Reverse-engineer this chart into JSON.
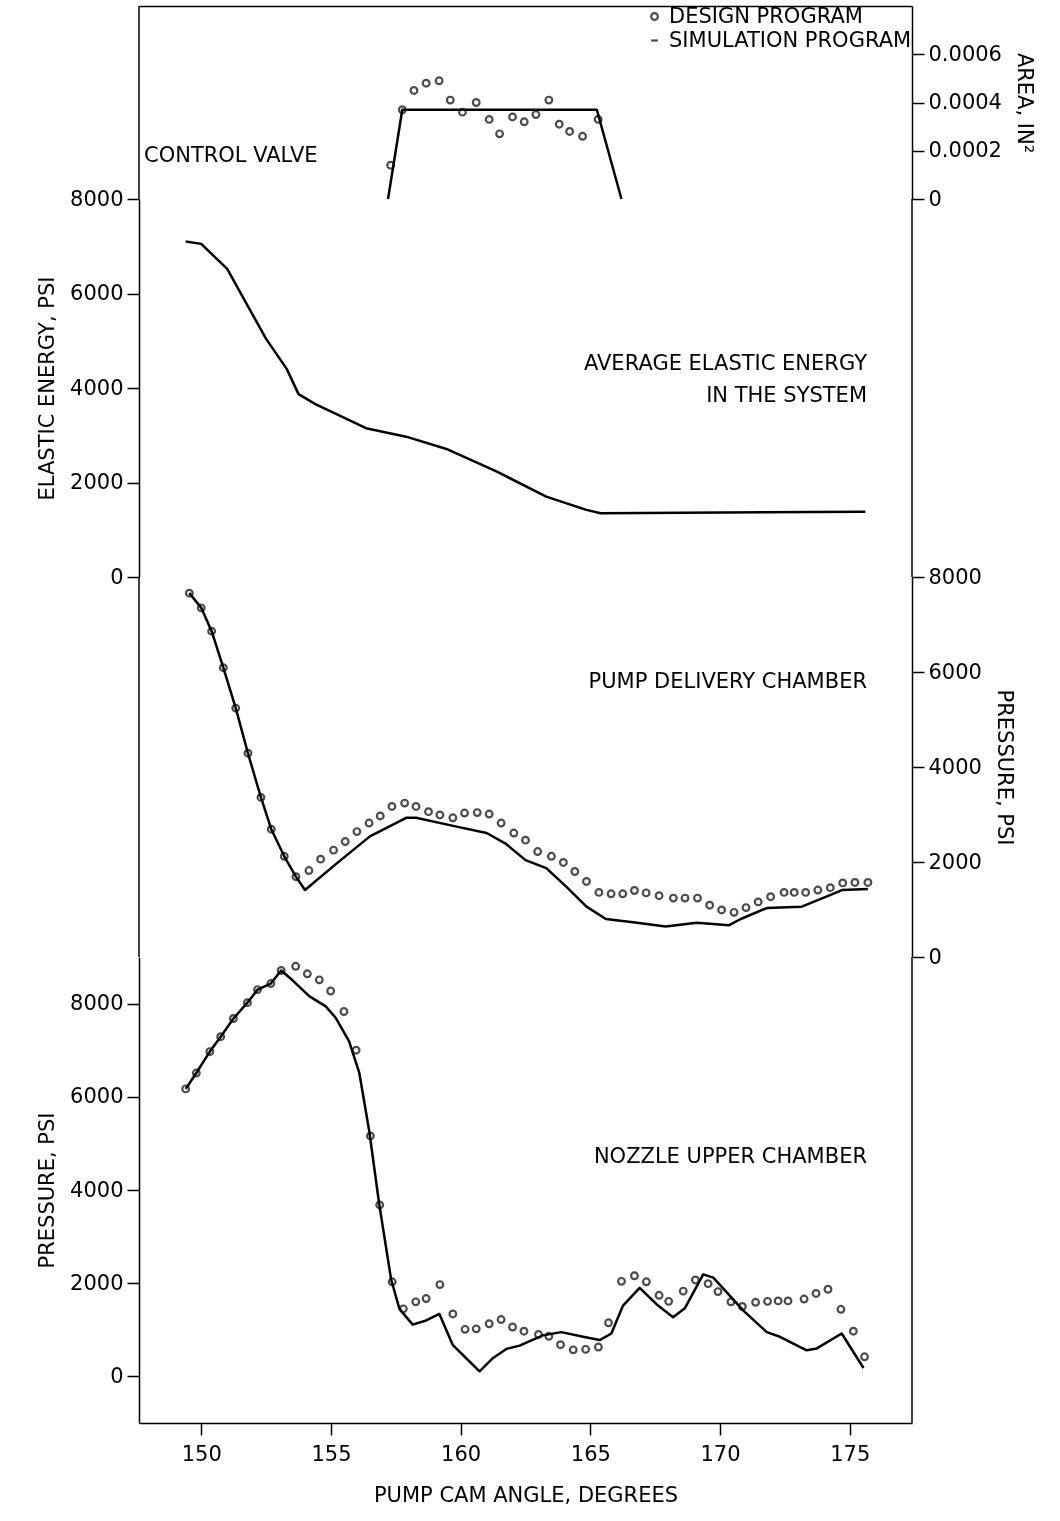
{
  "chart_data": [
    {
      "type": "line",
      "xlim": [
        147.6,
        177.4
      ],
      "y2lim": [
        0,
        0.0008
      ],
      "y2ticks": [
        0,
        0.0002,
        0.0004,
        0.0006
      ],
      "y2label": "AREA, IN²",
      "tick_labels": "y",
      "legend": "top right",
      "annotations": [
        "CONTROL VALVE"
      ],
      "series": [
        {
          "name": "DESIGN PROGRAM",
          "type": "scatter",
          "marker": "circle",
          "color": "#000000",
          "axis": "y2",
          "x": [
            157.3,
            157.75,
            158.2,
            158.67,
            159.17,
            159.6,
            160.07,
            160.6,
            161.1,
            161.5,
            162.0,
            162.45,
            162.9,
            163.4,
            163.8,
            164.2,
            164.7,
            165.3
          ],
          "values": [
            0.00014,
            0.00037,
            0.00045,
            0.00048,
            0.00049,
            0.00041,
            0.00036,
            0.0004,
            0.00033,
            0.00027,
            0.00034,
            0.00032,
            0.00035,
            0.00041,
            0.00031,
            0.00028,
            0.00026,
            0.00033
          ]
        },
        {
          "name": "SIMULATION PROGRAM",
          "line_style": "solid",
          "color": "#000000",
          "axis": "y2",
          "x": [
            157.2,
            157.75,
            165.25,
            166.2
          ],
          "values": [
            0,
            0.00037,
            0.00037,
            0
          ]
        }
      ]
    },
    {
      "type": "line",
      "xlim": [
        147.6,
        177.4
      ],
      "ylim": [
        0,
        8000
      ],
      "yticks": [
        0,
        2000,
        4000,
        6000,
        8000
      ],
      "ylabel": "ELASTIC ENERGY, PSI",
      "tick_labels": "y",
      "annotations": [
        "AVERAGE ELASTIC ENERGY\nIN THE SYSTEM"
      ],
      "series": [
        {
          "line_style": "solid",
          "color": "#000000",
          "x": [
            149.4,
            150.0,
            151.0,
            151.7,
            152.5,
            153.3,
            153.75,
            154.4,
            156.35,
            157.9,
            159.45,
            161.4,
            163.3,
            164.85,
            165.4,
            175.6
          ],
          "values": [
            7100,
            7050,
            6520,
            5830,
            5040,
            4400,
            3870,
            3660,
            3150,
            2970,
            2710,
            2230,
            1700,
            1420,
            1350,
            1380
          ]
        }
      ]
    },
    {
      "type": "line",
      "xlim": [
        147.6,
        177.4
      ],
      "y2lim": [
        0,
        8000
      ],
      "y2ticks": [
        0,
        2000,
        4000,
        6000,
        8000
      ],
      "y2label": "PRESSURE, PSI",
      "tick_labels": "y",
      "annotations": [
        "PUMP DELIVERY CHAMBER"
      ],
      "series": [
        {
          "type": "scatter",
          "marker": "circle",
          "color": "#000000",
          "axis": "y2",
          "x": [
            149.54,
            150.0,
            150.4,
            150.85,
            151.33,
            151.8,
            152.3,
            152.7,
            153.2,
            153.65,
            154.15,
            154.6,
            155.1,
            155.55,
            156.0,
            156.47,
            156.9,
            157.35,
            157.84,
            158.28,
            158.76,
            159.2,
            159.7,
            160.15,
            160.64,
            161.1,
            161.56,
            162.05,
            162.5,
            162.97,
            163.5,
            163.96,
            164.4,
            164.85,
            165.33,
            165.8,
            166.25,
            166.7,
            167.15,
            167.65,
            168.2,
            168.65,
            169.13,
            169.6,
            170.06,
            170.54,
            171.0,
            171.47,
            171.95,
            172.47,
            172.86,
            173.3,
            173.77,
            174.25,
            174.73,
            175.2,
            175.7
          ],
          "values": [
            7660,
            7350,
            6860,
            6090,
            5240,
            4290,
            3360,
            2690,
            2120,
            1690,
            1820,
            2060,
            2250,
            2430,
            2640,
            2820,
            2970,
            3170,
            3240,
            3170,
            3060,
            2990,
            2930,
            3030,
            3040,
            3010,
            2820,
            2610,
            2460,
            2220,
            2120,
            1990,
            1800,
            1590,
            1360,
            1330,
            1330,
            1400,
            1350,
            1290,
            1240,
            1240,
            1240,
            1090,
            990,
            940,
            1040,
            1160,
            1270,
            1360,
            1360,
            1360,
            1410,
            1460,
            1560,
            1570,
            1570
          ]
        },
        {
          "line_style": "solid",
          "color": "#000000",
          "axis": "y2",
          "x": [
            149.54,
            150.0,
            150.4,
            150.85,
            151.33,
            151.8,
            152.3,
            152.7,
            153.2,
            153.65,
            154.0,
            155.2,
            156.5,
            157.9,
            158.28,
            159.8,
            161.0,
            161.75,
            162.5,
            163.3,
            164.07,
            164.85,
            165.6,
            166.8,
            167.9,
            169.1,
            170.35,
            170.8,
            171.8,
            173.15,
            174.1,
            174.7,
            175.7
          ],
          "values": [
            7660,
            7350,
            6860,
            6090,
            5240,
            4290,
            3360,
            2690,
            2120,
            1690,
            1410,
            1960,
            2540,
            2930,
            2930,
            2750,
            2610,
            2380,
            2040,
            1870,
            1480,
            1060,
            800,
            720,
            640,
            720,
            670,
            800,
            1030,
            1060,
            1270,
            1410,
            1430
          ]
        }
      ]
    },
    {
      "type": "line",
      "xlim": [
        147.6,
        177.4
      ],
      "xticks": [
        150,
        155,
        160,
        165,
        170,
        175
      ],
      "xlabel": "PUMP CAM ANGLE,  DEGREES",
      "ylim": [
        -1000,
        9000
      ],
      "yticks": [
        0,
        2000,
        4000,
        6000,
        8000
      ],
      "ylabel": "PRESSURE, PSI",
      "annotations": [
        "NOZZLE UPPER CHAMBER"
      ],
      "series": [
        {
          "type": "scatter",
          "marker": "circle",
          "color": "#000000",
          "x": [
            149.4,
            149.81,
            150.33,
            150.75,
            151.24,
            151.78,
            152.17,
            152.68,
            153.08,
            153.64,
            154.09,
            154.55,
            154.99,
            155.5,
            155.97,
            156.52,
            156.88,
            157.36,
            157.79,
            158.27,
            158.67,
            159.2,
            159.7,
            160.17,
            160.6,
            161.1,
            161.56,
            162.0,
            162.44,
            163.0,
            163.4,
            163.85,
            164.34,
            164.82,
            165.31,
            165.7,
            166.2,
            166.7,
            167.16,
            167.65,
            168.02,
            168.58,
            169.05,
            169.54,
            169.92,
            170.42,
            170.86,
            171.37,
            171.83,
            172.24,
            172.62,
            173.24,
            173.7,
            174.16,
            174.66,
            175.14,
            175.57
          ],
          "values": [
            6170,
            6510,
            6970,
            7290,
            7680,
            8020,
            8300,
            8430,
            8710,
            8800,
            8640,
            8510,
            8270,
            7830,
            7000,
            5160,
            3680,
            2030,
            1450,
            1600,
            1670,
            1970,
            1340,
            1010,
            1020,
            1130,
            1220,
            1060,
            970,
            900,
            860,
            680,
            570,
            580,
            630,
            1150,
            2040,
            2160,
            2030,
            1740,
            1610,
            1830,
            2070,
            1990,
            1820,
            1600,
            1500,
            1590,
            1610,
            1620,
            1620,
            1660,
            1780,
            1870,
            1440,
            970,
            420
          ]
        },
        {
          "line_style": "solid",
          "color": "#000000",
          "x": [
            149.4,
            149.81,
            150.33,
            150.75,
            151.24,
            151.78,
            152.17,
            152.68,
            153.08,
            153.52,
            154.16,
            154.8,
            155.19,
            155.7,
            156.09,
            156.48,
            156.86,
            157.32,
            157.64,
            158.15,
            158.67,
            159.18,
            159.7,
            160.34,
            160.73,
            161.24,
            161.76,
            162.27,
            163.17,
            163.88,
            164.72,
            165.36,
            165.81,
            166.26,
            166.9,
            167.61,
            168.19,
            168.64,
            169.35,
            169.74,
            170.9,
            171.8,
            172.31,
            173.34,
            173.73,
            174.69,
            175.53
          ],
          "values": [
            6170,
            6510,
            6970,
            7290,
            7680,
            8020,
            8300,
            8430,
            8710,
            8500,
            8160,
            7940,
            7690,
            7190,
            6520,
            5250,
            3700,
            2080,
            1450,
            1110,
            1200,
            1340,
            670,
            320,
            110,
            390,
            590,
            660,
            880,
            950,
            850,
            780,
            920,
            1520,
            1900,
            1520,
            1270,
            1460,
            2190,
            2120,
            1410,
            950,
            850,
            560,
            600,
            920,
            180
          ]
        }
      ]
    }
  ]
}
